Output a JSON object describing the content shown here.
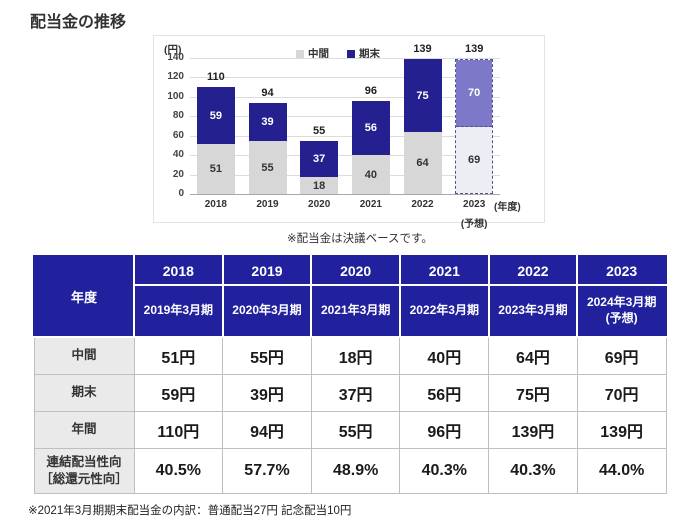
{
  "page": {
    "title": "配当金の推移",
    "chart_note": "※配当金は決議ベースです。",
    "footnote": "※2021年3月期期末配当金の内訳：普通配当27円 記念配当10円"
  },
  "chart_data": {
    "type": "bar",
    "stacked": true,
    "title": "配当金の推移",
    "unit_label": "(円)",
    "x_axis_label": "(年度)",
    "forecast_label": "(予想)",
    "categories": [
      "2018",
      "2019",
      "2020",
      "2021",
      "2022",
      "2023"
    ],
    "series": [
      {
        "name": "中間",
        "values": [
          51,
          55,
          18,
          40,
          64,
          69
        ],
        "color": "#d7d7d7",
        "forecast_color": "#edeef4",
        "label_color": "dark"
      },
      {
        "name": "期末",
        "values": [
          59,
          39,
          37,
          56,
          75,
          70
        ],
        "color": "#24208f",
        "forecast_color": "#7e78c8",
        "label_color": "light"
      }
    ],
    "totals": [
      110,
      94,
      55,
      96,
      139,
      139
    ],
    "forecast_index": 5,
    "ylim": [
      0,
      140
    ],
    "ytick_step": 20,
    "grid": true,
    "legend_position": "top-right"
  },
  "table": {
    "corner_label": "年度",
    "columns": [
      {
        "year": "2018",
        "period": "2019年3月期"
      },
      {
        "year": "2019",
        "period": "2020年3月期"
      },
      {
        "year": "2020",
        "period": "2021年3月期"
      },
      {
        "year": "2021",
        "period": "2022年3月期"
      },
      {
        "year": "2022",
        "period": "2023年3月期"
      },
      {
        "year": "2023",
        "period": "2024年3月期",
        "period_note": "(予想)"
      }
    ],
    "rows": [
      {
        "label": "中間",
        "values": [
          "51円",
          "55円",
          "18円",
          "40円",
          "64円",
          "69円"
        ]
      },
      {
        "label": "期末",
        "values": [
          "59円",
          "39円",
          "37円",
          "56円",
          "75円",
          "70円"
        ]
      },
      {
        "label": "年間",
        "values": [
          "110円",
          "94円",
          "55円",
          "96円",
          "139円",
          "139円"
        ]
      },
      {
        "label": "連結配当性向\n［総還元性向］",
        "values": [
          "40.5%",
          "57.7%",
          "48.9%",
          "40.3%",
          "40.3%",
          "44.0%"
        ]
      }
    ]
  },
  "colors": {
    "bar_interim": "#d7d7d7",
    "bar_yearend": "#24208f",
    "bar_interim_forecast": "#edeef4",
    "bar_yearend_forecast": "#7e78c8",
    "table_header_bg": "#21219e",
    "table_label_bg": "#eaeaea",
    "grid_line": "#dcdcdc",
    "forecast_dash": "#52528f"
  }
}
